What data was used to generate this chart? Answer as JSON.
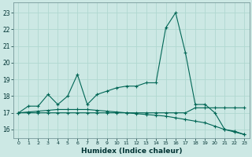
{
  "title": "",
  "xlabel": "Humidex (Indice chaleur)",
  "xlim": [
    -0.5,
    23.5
  ],
  "ylim": [
    15.5,
    23.6
  ],
  "yticks": [
    16,
    17,
    18,
    19,
    20,
    21,
    22,
    23
  ],
  "xticks": [
    0,
    1,
    2,
    3,
    4,
    5,
    6,
    7,
    8,
    9,
    10,
    11,
    12,
    13,
    14,
    15,
    16,
    17,
    18,
    19,
    20,
    21,
    22,
    23
  ],
  "bg_color": "#cce8e4",
  "line_color": "#006655",
  "grid_color": "#b0d8d0",
  "series": [
    {
      "x": [
        0,
        1,
        2,
        3,
        4,
        5,
        6,
        7,
        8,
        9,
        10,
        11,
        12,
        13,
        14,
        15,
        16,
        17,
        18,
        19,
        20,
        21,
        22,
        23
      ],
      "y": [
        17.0,
        17.4,
        17.4,
        18.1,
        17.5,
        18.0,
        19.3,
        17.5,
        18.1,
        18.3,
        18.5,
        18.6,
        18.6,
        18.8,
        18.8,
        22.1,
        23.0,
        20.6,
        17.5,
        17.5,
        17.0,
        16.0,
        15.9,
        15.7
      ]
    },
    {
      "x": [
        0,
        1,
        2,
        3,
        4,
        5,
        6,
        7,
        8,
        9,
        10,
        11,
        12,
        13,
        14,
        15,
        16,
        17,
        18,
        19,
        20,
        21,
        22,
        23
      ],
      "y": [
        17.0,
        17.0,
        17.0,
        17.0,
        17.0,
        17.0,
        17.0,
        17.0,
        17.0,
        17.0,
        17.0,
        17.0,
        17.0,
        17.0,
        17.0,
        17.0,
        17.0,
        17.0,
        17.3,
        17.3,
        17.3,
        17.3,
        17.3,
        17.3
      ]
    },
    {
      "x": [
        0,
        1,
        2,
        3,
        4,
        5,
        6,
        7,
        8,
        9,
        10,
        11,
        12,
        13,
        14,
        15,
        16,
        17,
        18,
        19,
        20,
        21,
        22,
        23
      ],
      "y": [
        17.0,
        17.05,
        17.1,
        17.15,
        17.2,
        17.2,
        17.2,
        17.2,
        17.15,
        17.1,
        17.05,
        17.0,
        16.95,
        16.9,
        16.85,
        16.8,
        16.7,
        16.6,
        16.5,
        16.4,
        16.2,
        16.0,
        15.85,
        15.7
      ]
    }
  ]
}
